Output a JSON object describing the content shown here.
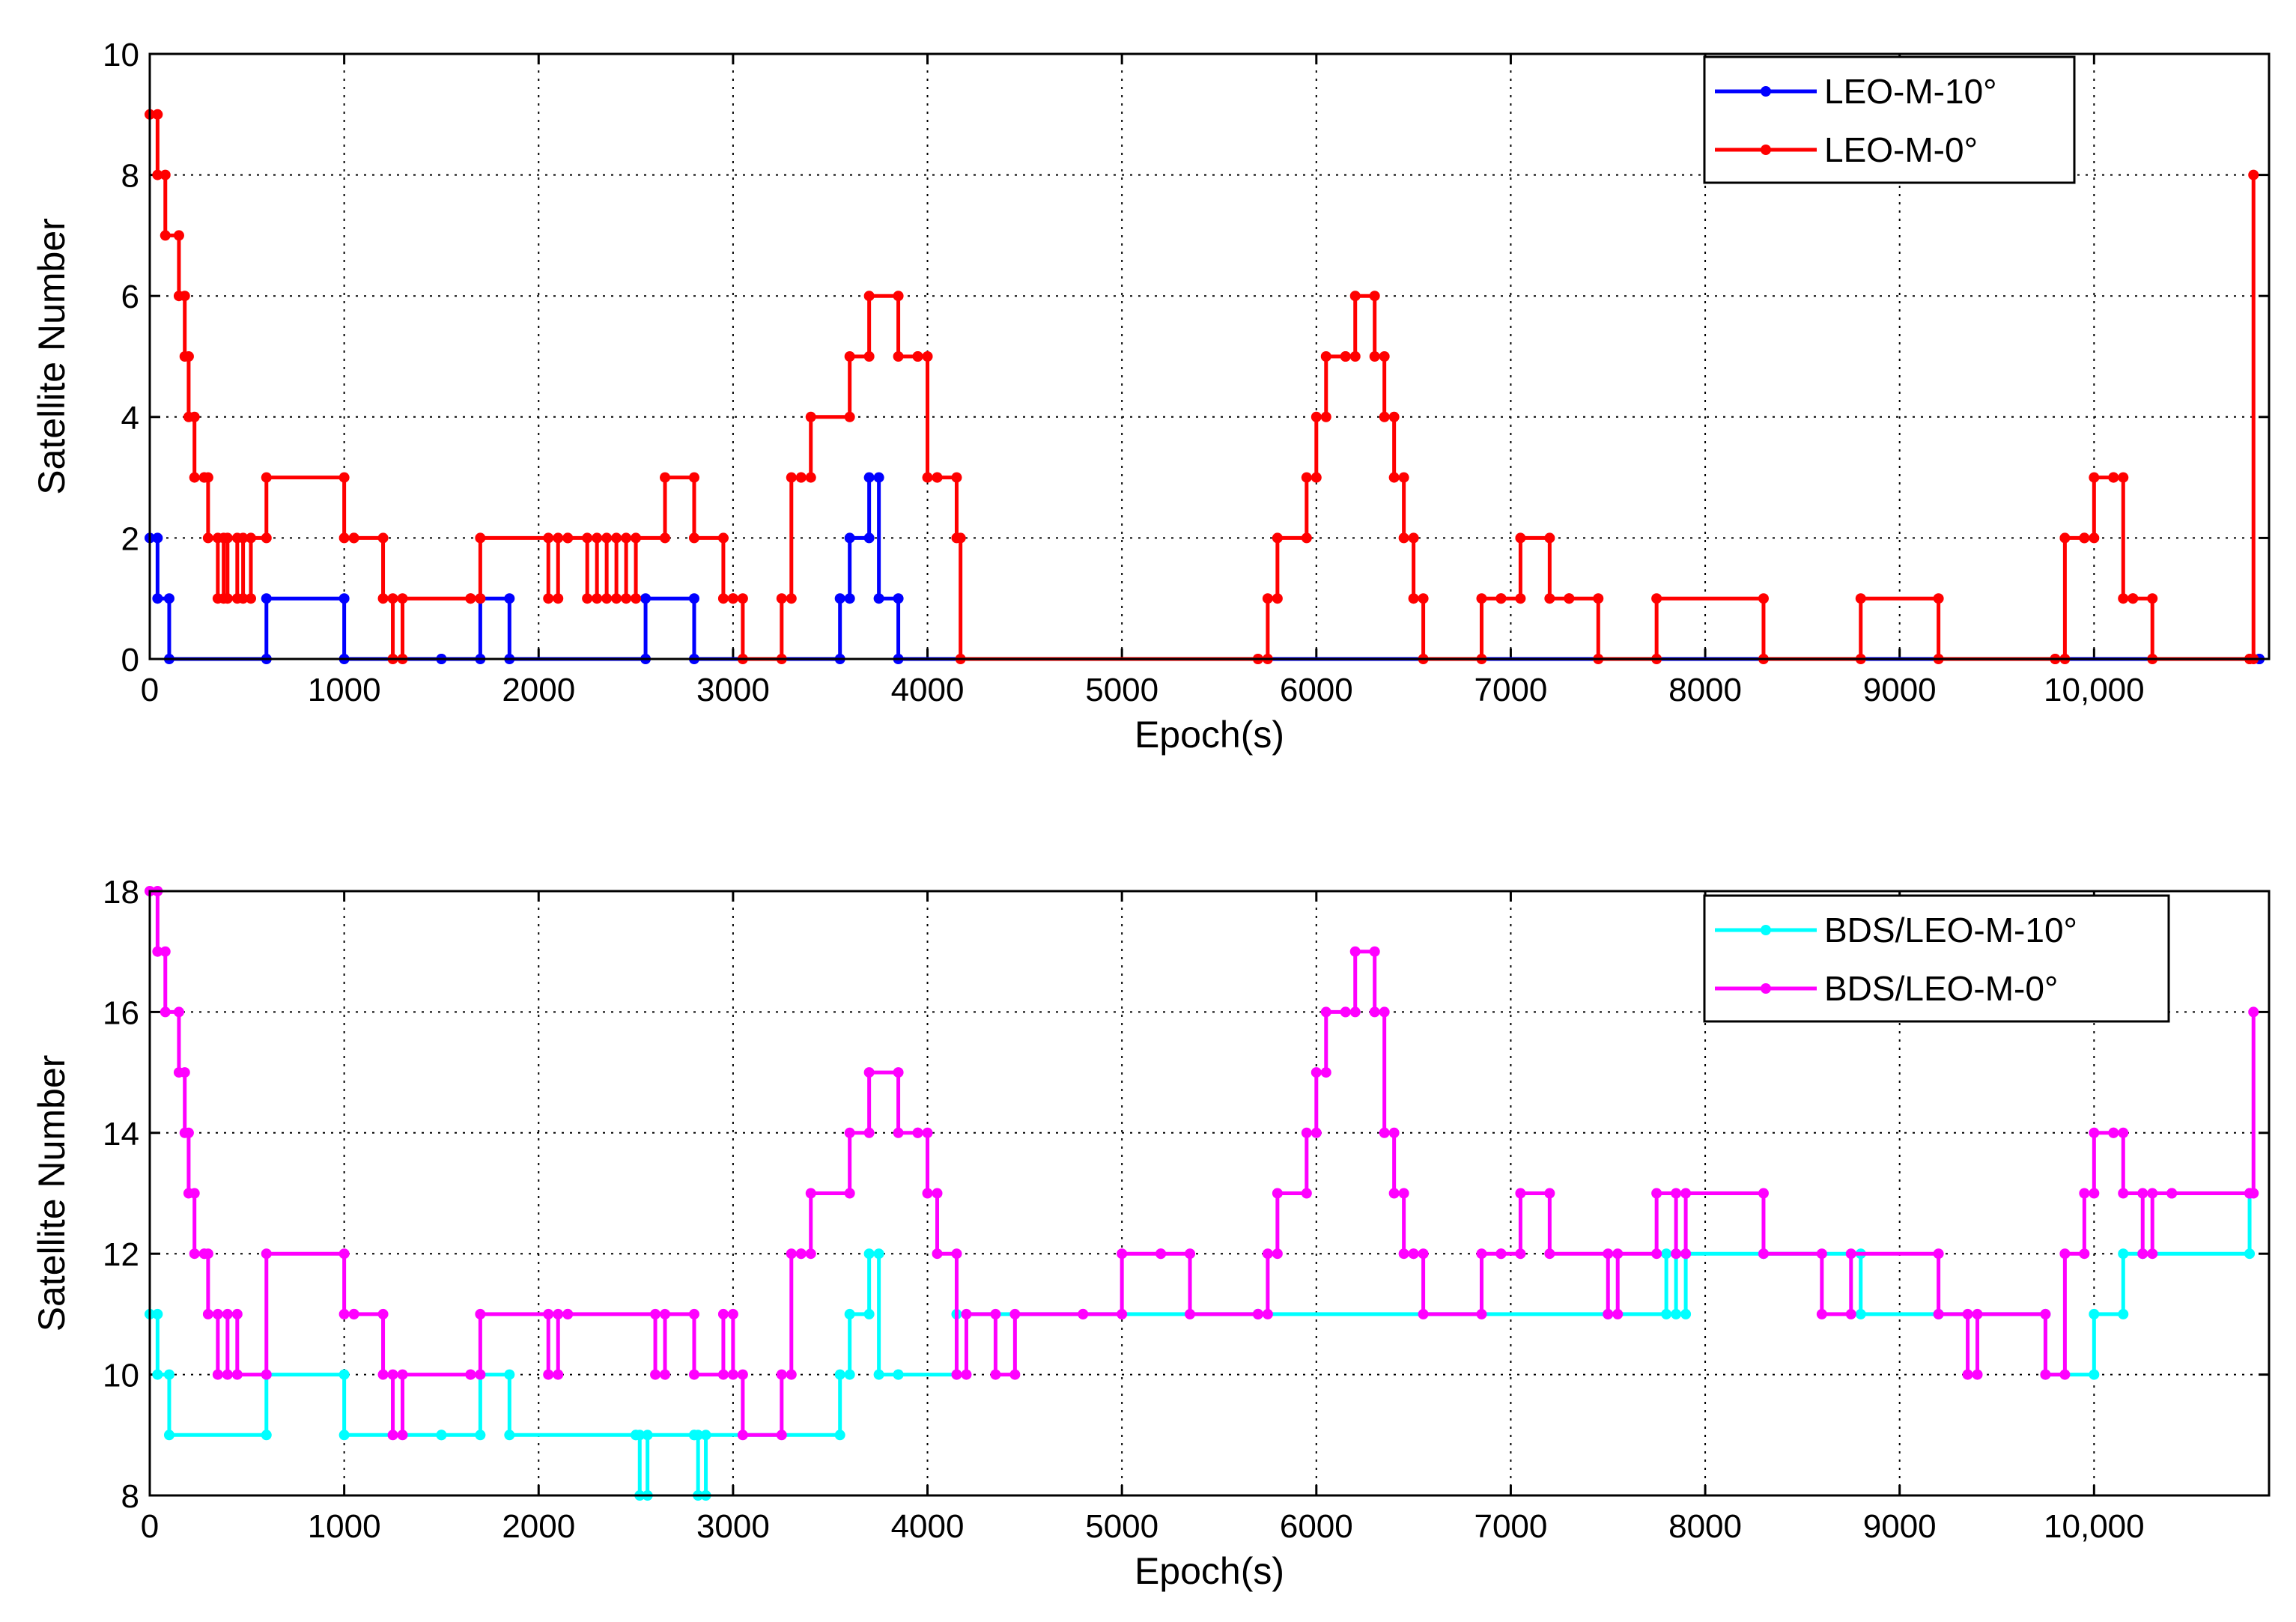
{
  "chart_data": [
    {
      "type": "line",
      "xlabel": "Epoch(s)",
      "ylabel": "Satellite Number",
      "xlim": [
        0,
        10900
      ],
      "ylim": [
        0,
        10
      ],
      "xticks": [
        0,
        1000,
        2000,
        3000,
        4000,
        5000,
        6000,
        7000,
        8000,
        9000,
        10000
      ],
      "xtick_labels": [
        "0",
        "1000",
        "2000",
        "3000",
        "4000",
        "5000",
        "6000",
        "7000",
        "8000",
        "9000",
        "10,000"
      ],
      "yticks": [
        0,
        2,
        4,
        6,
        8,
        10
      ],
      "ytick_labels": [
        "0",
        "2",
        "4",
        "6",
        "8",
        "10"
      ],
      "grid": true,
      "legend_position": "top-right",
      "series": [
        {
          "name": "LEO-M-10°",
          "color": "#0000ff",
          "x": [
            0,
            40,
            100,
            600,
            1000,
            1500,
            1700,
            1850,
            2550,
            2800,
            3550,
            3600,
            3700,
            3750,
            3850,
            10850
          ],
          "y": [
            2,
            1,
            0,
            1,
            0,
            0,
            1,
            0,
            1,
            0,
            1,
            2,
            3,
            1,
            0,
            0
          ]
        },
        {
          "name": "LEO-M-0°",
          "color": "#ff0000",
          "x": [
            0,
            40,
            80,
            150,
            180,
            200,
            230,
            280,
            300,
            350,
            380,
            400,
            450,
            480,
            520,
            600,
            1000,
            1050,
            1200,
            1250,
            1300,
            1650,
            1700,
            2050,
            2100,
            2150,
            2250,
            2300,
            2350,
            2400,
            2450,
            2500,
            2650,
            2800,
            2950,
            3000,
            3050,
            3250,
            3300,
            3350,
            3400,
            3600,
            3700,
            3850,
            3950,
            4000,
            4050,
            4150,
            4170,
            5700,
            5750,
            5800,
            5950,
            6000,
            6050,
            6150,
            6200,
            6300,
            6350,
            6400,
            6450,
            6500,
            6550,
            6850,
            6950,
            7050,
            7200,
            7300,
            7450,
            7750,
            8300,
            8800,
            9200,
            9800,
            9850,
            9950,
            10000,
            10100,
            10150,
            10200,
            10300,
            10800,
            10820
          ],
          "y": [
            9,
            8,
            7,
            6,
            5,
            4,
            3,
            3,
            2,
            1,
            2,
            1,
            2,
            1,
            2,
            3,
            2,
            2,
            1,
            0,
            1,
            1,
            2,
            1,
            2,
            2,
            1,
            2,
            1,
            2,
            1,
            2,
            3,
            2,
            1,
            1,
            0,
            1,
            3,
            3,
            4,
            5,
            6,
            5,
            5,
            3,
            3,
            2,
            0,
            0,
            1,
            2,
            3,
            4,
            5,
            5,
            6,
            5,
            4,
            3,
            2,
            1,
            0,
            1,
            1,
            2,
            1,
            1,
            0,
            1,
            0,
            1,
            0,
            0,
            2,
            2,
            3,
            3,
            1,
            1,
            0,
            0,
            8
          ]
        }
      ],
      "x_minor": "10,000"
    },
    {
      "type": "line",
      "xlabel": "Epoch(s)",
      "ylabel": "Satellite Number",
      "xlim": [
        0,
        10900
      ],
      "ylim": [
        8,
        18
      ],
      "xticks": [
        0,
        1000,
        2000,
        3000,
        4000,
        5000,
        6000,
        7000,
        8000,
        9000,
        10000
      ],
      "xtick_labels": [
        "0",
        "1000",
        "2000",
        "3000",
        "4000",
        "5000",
        "6000",
        "7000",
        "8000",
        "9000",
        "10,000"
      ],
      "yticks": [
        8,
        10,
        12,
        14,
        16,
        18
      ],
      "ytick_labels": [
        "8",
        "10",
        "12",
        "14",
        "16",
        "18"
      ],
      "grid": true,
      "legend_position": "top-right",
      "series": [
        {
          "name": "BDS/LEO-M-10°",
          "color": "#00ffff",
          "x": [
            0,
            40,
            100,
            600,
            1000,
            1500,
            1700,
            1850,
            2500,
            2520,
            2560,
            2800,
            2820,
            2860,
            3550,
            3600,
            3700,
            3750,
            3850,
            4150,
            5700,
            7500,
            7800,
            7850,
            7900,
            8300,
            8800,
            9200,
            9750,
            10000,
            10150,
            10250,
            10800
          ],
          "y": [
            11,
            10,
            9,
            10,
            9,
            9,
            10,
            9,
            9,
            8,
            9,
            9,
            8,
            9,
            10,
            11,
            12,
            10,
            10,
            11,
            11,
            11,
            12,
            11,
            12,
            12,
            11,
            11,
            10,
            11,
            12,
            12,
            13
          ],
          "x_note": ""
        },
        {
          "name": "BDS/LEO-M-0°",
          "color": "#ff00ff",
          "x": [
            0,
            40,
            80,
            150,
            180,
            200,
            230,
            280,
            300,
            350,
            400,
            450,
            600,
            1000,
            1050,
            1200,
            1250,
            1300,
            1650,
            1700,
            2050,
            2100,
            2150,
            2600,
            2650,
            2800,
            2950,
            3000,
            3050,
            3250,
            3300,
            3350,
            3400,
            3600,
            3700,
            3850,
            3950,
            4000,
            4050,
            4150,
            4200,
            4350,
            4450,
            4800,
            5000,
            5200,
            5350,
            5700,
            5750,
            5800,
            5950,
            6000,
            6050,
            6150,
            6200,
            6300,
            6350,
            6400,
            6450,
            6500,
            6550,
            6850,
            6950,
            7050,
            7200,
            7500,
            7550,
            7750,
            7850,
            7900,
            8300,
            8600,
            8750,
            9200,
            9350,
            9400,
            9750,
            9850,
            9950,
            10000,
            10100,
            10150,
            10250,
            10300,
            10400,
            10800,
            10820
          ],
          "y": [
            18,
            17,
            16,
            15,
            14,
            13,
            12,
            12,
            11,
            10,
            11,
            10,
            12,
            11,
            11,
            10,
            9,
            10,
            10,
            11,
            10,
            11,
            11,
            10,
            11,
            10,
            11,
            10,
            9,
            10,
            12,
            12,
            13,
            14,
            15,
            14,
            14,
            13,
            12,
            10,
            11,
            10,
            11,
            11,
            12,
            12,
            11,
            11,
            12,
            13,
            14,
            15,
            16,
            16,
            17,
            16,
            14,
            13,
            12,
            12,
            11,
            12,
            12,
            13,
            12,
            11,
            12,
            13,
            12,
            13,
            12,
            11,
            12,
            11,
            10,
            11,
            10,
            12,
            13,
            14,
            14,
            13,
            12,
            13,
            13,
            13,
            16
          ]
        }
      ]
    }
  ]
}
